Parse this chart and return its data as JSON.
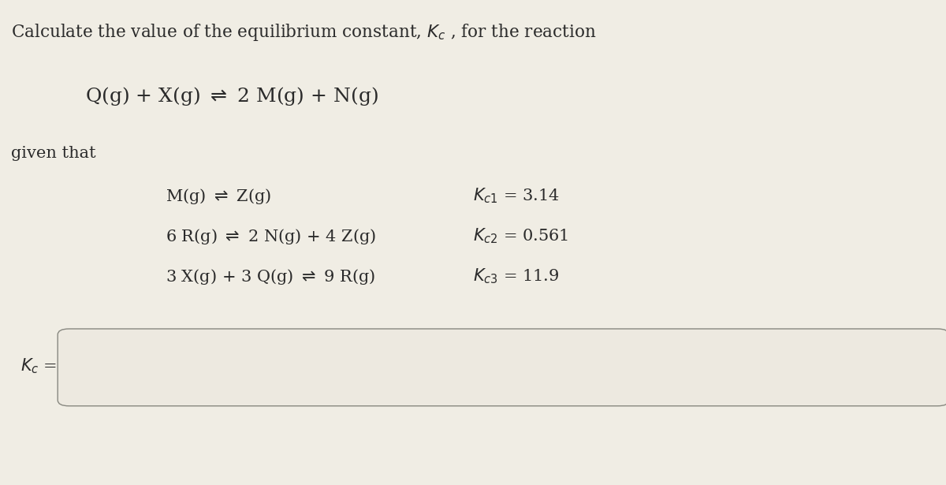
{
  "bg_color": "#f0ede4",
  "text_color": "#2a2a2a",
  "title_text": "Calculate the value of the equilibrium constant, $K_c$ , for the reaction",
  "main_reaction": "Q(g) + X(g) $\\rightleftharpoons$ 2 M(g) + N(g)",
  "given_that": "given that",
  "reactions": [
    "M(g) $\\rightleftharpoons$ Z(g)",
    "6 R(g) $\\rightleftharpoons$ 2 N(g) + 4 Z(g)",
    "3 X(g) + 3 Q(g) $\\rightleftharpoons$ 9 R(g)"
  ],
  "kc_labels": [
    "$K_{c1}$ = 3.14",
    "$K_{c2}$ = 0.561",
    "$K_{c3}$ = 11.9"
  ],
  "answer_label": "$K_c$ =",
  "title_fontsize": 15.5,
  "reaction_fontsize": 18,
  "body_fontsize": 15,
  "figsize": [
    12.0,
    6.15
  ],
  "dpi": 100
}
